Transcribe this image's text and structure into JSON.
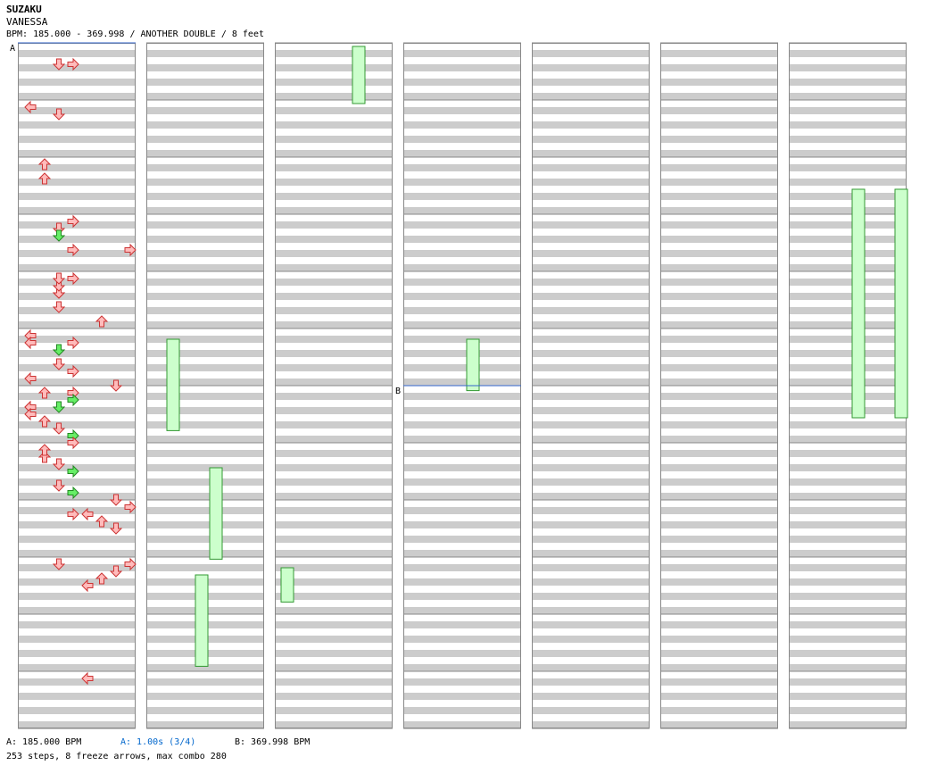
{
  "song": {
    "title": "SUZAKU",
    "artist": "VANESSA",
    "info": "BPM: 185.000 - 369.998 / ANOTHER DOUBLE / 8 feet"
  },
  "markers": [
    {
      "label": "A",
      "column": 1,
      "measure": 1,
      "color": "#3366cc"
    },
    {
      "label": "B",
      "column": 4,
      "measure": 7,
      "color": "#3366cc"
    }
  ],
  "footer": {
    "bpm_a": "A: 185.000 BPM",
    "stop_a": "A: 1.00s (3/4)",
    "bpm_b": "B: 369.998 BPM",
    "summary": "253 steps, 8 freeze arrows, max combo 280"
  },
  "colors": {
    "stripe": "#cccccc",
    "border": "#888888",
    "arrow_red": "#ffbbbb",
    "arrow_red_stroke": "#cc3333",
    "arrow_green": "#66ee66",
    "arrow_green_stroke": "#228822",
    "arrow_blue": "#88bbff",
    "arrow_blue_stroke": "#3366cc",
    "freeze_fill": "#ccffcc",
    "freeze_stroke": "#339933"
  },
  "notes": [
    [
      1,
      1,
      4,
      2,
      "r"
    ],
    [
      1,
      1,
      4,
      3,
      "r"
    ],
    [
      1,
      3,
      4,
      1,
      "r"
    ],
    [
      1,
      5,
      4,
      2,
      "r"
    ],
    [
      1,
      7,
      4,
      0,
      "r"
    ],
    [
      1,
      2,
      0,
      0,
      "r"
    ],
    [
      1,
      2,
      2,
      2,
      "r"
    ],
    [
      1,
      4,
      2,
      2,
      "r"
    ],
    [
      1,
      6,
      0,
      0,
      "r"
    ],
    [
      1,
      6,
      2,
      0,
      "r"
    ],
    [
      1,
      3,
      0,
      1,
      "r"
    ],
    [
      1,
      4,
      0,
      3,
      "r"
    ],
    [
      1,
      5,
      4,
      2,
      "r"
    ],
    [
      1,
      5,
      0,
      3,
      "r"
    ],
    [
      1,
      6,
      4,
      2,
      "g"
    ],
    [
      1,
      7,
      0,
      3,
      "r"
    ],
    [
      1,
      8,
      2,
      1,
      "r"
    ],
    [
      1,
      9,
      2,
      3,
      "r"
    ],
    [
      1,
      10,
      0,
      2,
      "r"
    ],
    [
      1,
      12,
      0,
      4,
      "r"
    ],
    [
      1,
      13,
      0,
      5,
      "r"
    ],
    [
      1,
      14,
      0,
      6,
      "r"
    ],
    [
      1,
      15,
      0,
      7,
      "r"
    ],
    [
      1,
      4,
      4,
      2,
      "g"
    ],
    [
      1,
      4,
      0,
      3,
      "r"
    ],
    [
      1,
      5,
      2,
      2,
      "r"
    ],
    [
      1,
      6,
      2,
      3,
      "r"
    ],
    [
      1,
      7,
      4,
      2,
      "g"
    ],
    [
      1,
      4,
      8,
      3,
      "r"
    ],
    [
      1,
      4,
      8,
      7,
      "r"
    ],
    [
      1,
      5,
      8,
      2,
      "r"
    ],
    [
      1,
      5,
      12,
      5,
      "r"
    ],
    [
      1,
      5,
      0,
      2,
      "r"
    ],
    [
      1,
      6,
      8,
      2,
      "r"
    ],
    [
      1,
      6,
      10,
      3,
      "r"
    ],
    [
      1,
      6,
      12,
      0,
      "r"
    ],
    [
      1,
      6,
      14,
      6,
      "r"
    ],
    [
      1,
      7,
      0,
      1,
      "r"
    ],
    [
      1,
      7,
      2,
      3,
      "g"
    ],
    [
      1,
      7,
      4,
      0,
      "r"
    ],
    [
      1,
      7,
      6,
      0,
      "r"
    ],
    [
      1,
      7,
      8,
      1,
      "r"
    ],
    [
      1,
      7,
      10,
      2,
      "r"
    ],
    [
      1,
      7,
      12,
      3,
      "g"
    ],
    [
      1,
      7,
      14,
      3,
      "r"
    ],
    [
      1,
      8,
      0,
      1,
      "r"
    ],
    [
      1,
      8,
      4,
      2,
      "r"
    ],
    [
      1,
      8,
      6,
      3,
      "g"
    ],
    [
      1,
      8,
      10,
      2,
      "r"
    ],
    [
      1,
      8,
      12,
      3,
      "g"
    ],
    [
      1,
      8,
      14,
      6,
      "r"
    ],
    [
      1,
      9,
      0,
      7,
      "r"
    ],
    [
      1,
      9,
      2,
      4,
      "r"
    ],
    [
      1,
      9,
      4,
      5,
      "r"
    ],
    [
      1,
      9,
      6,
      6,
      "r"
    ],
    [
      1,
      10,
      0,
      7,
      "r"
    ],
    [
      1,
      10,
      2,
      6,
      "r"
    ],
    [
      1,
      10,
      4,
      5,
      "r"
    ],
    [
      1,
      10,
      6,
      4,
      "r"
    ]
  ]
}
